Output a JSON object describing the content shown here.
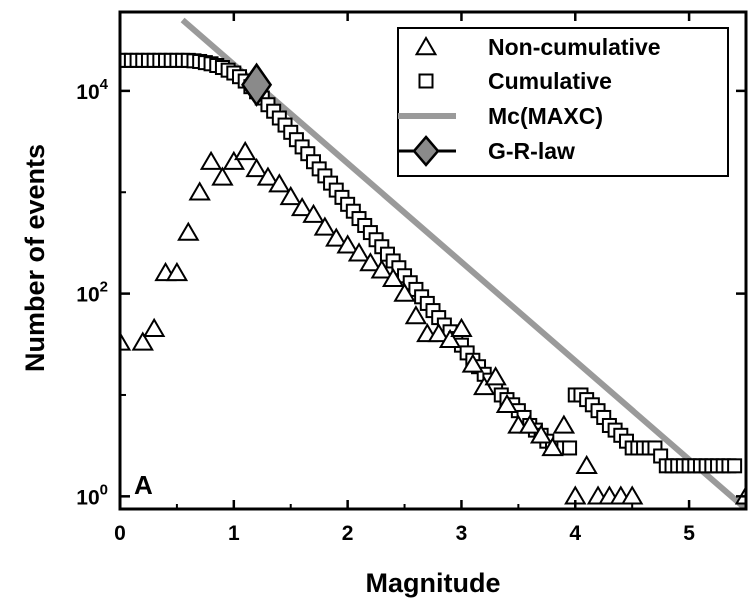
{
  "chart_data": {
    "type": "scatter",
    "y_scale": "log",
    "xlabel": "Magnitude",
    "ylabel": "Number of events",
    "xlim": [
      0,
      5.5
    ],
    "ylim": [
      0.75,
      60000
    ],
    "x_ticks": [
      0,
      1,
      2,
      3,
      4,
      5
    ],
    "x_tick_labels": [
      "0",
      "1",
      "2",
      "3",
      "4",
      "5"
    ],
    "y_ticks": [
      1,
      100,
      10000
    ],
    "y_tick_labels": [
      {
        "base": "10",
        "exp": "0"
      },
      {
        "base": "10",
        "exp": "2"
      },
      {
        "base": "10",
        "exp": "4"
      }
    ],
    "grid": false,
    "legend_position": "top-right",
    "panel_label": "A",
    "colors": {
      "fit_line": "#9a9a9a",
      "diamond": "#8a8a8a",
      "marker_stroke": "#000000"
    },
    "series": [
      {
        "name": "Non-cumulative",
        "marker": "triangle",
        "x": [
          0.0,
          0.2,
          0.3,
          0.4,
          0.5,
          0.6,
          0.7,
          0.8,
          0.9,
          1.0,
          1.1,
          1.2,
          1.3,
          1.4,
          1.5,
          1.6,
          1.7,
          1.8,
          1.9,
          2.0,
          2.1,
          2.2,
          2.3,
          2.4,
          2.5,
          2.6,
          2.7,
          2.8,
          2.9,
          3.0,
          3.1,
          3.2,
          3.3,
          3.4,
          3.5,
          3.6,
          3.7,
          3.8,
          3.9,
          4.0,
          4.1,
          4.2,
          4.3,
          4.4,
          4.5,
          5.5
        ],
        "y": [
          33,
          33,
          45,
          160,
          160,
          400,
          1000,
          2000,
          1400,
          2000,
          2500,
          1700,
          1400,
          1200,
          900,
          700,
          600,
          450,
          350,
          300,
          250,
          200,
          170,
          140,
          100,
          60,
          40,
          40,
          35,
          45,
          20,
          12,
          15,
          8,
          5,
          5,
          4,
          3,
          5,
          1,
          2,
          1,
          1,
          1,
          1,
          1
        ]
      },
      {
        "name": "Cumulative",
        "marker": "square",
        "x": [
          0.0,
          0.05,
          0.1,
          0.15,
          0.2,
          0.25,
          0.3,
          0.35,
          0.4,
          0.45,
          0.5,
          0.55,
          0.6,
          0.65,
          0.7,
          0.75,
          0.8,
          0.85,
          0.9,
          0.95,
          1.0,
          1.05,
          1.1,
          1.15,
          1.2,
          1.25,
          1.3,
          1.35,
          1.4,
          1.45,
          1.5,
          1.55,
          1.6,
          1.65,
          1.7,
          1.75,
          1.8,
          1.85,
          1.9,
          1.95,
          2.0,
          2.05,
          2.1,
          2.15,
          2.2,
          2.25,
          2.3,
          2.35,
          2.4,
          2.45,
          2.5,
          2.55,
          2.6,
          2.65,
          2.7,
          2.75,
          2.8,
          2.85,
          2.9,
          2.95,
          3.0,
          3.05,
          3.1,
          3.15,
          3.2,
          3.25,
          3.3,
          3.35,
          3.4,
          3.45,
          3.5,
          3.55,
          3.6,
          3.65,
          3.7,
          3.75,
          3.8,
          3.85,
          3.9,
          3.95,
          4.0,
          4.05,
          4.1,
          4.15,
          4.2,
          4.25,
          4.3,
          4.35,
          4.4,
          4.45,
          4.5,
          4.55,
          4.6,
          4.65,
          4.7,
          4.75,
          4.8,
          4.85,
          4.9,
          4.95,
          5.0,
          5.05,
          5.1,
          5.15,
          5.2,
          5.25,
          5.3,
          5.35,
          5.4
        ],
        "y": [
          20000,
          20000,
          20000,
          20000,
          20000,
          20000,
          20000,
          20000,
          20000,
          20000,
          20000,
          20000,
          20000,
          19800,
          19500,
          19000,
          18500,
          17800,
          17000,
          16000,
          15000,
          13800,
          12500,
          11000,
          9800,
          8500,
          7300,
          6300,
          5400,
          4600,
          3900,
          3300,
          2800,
          2400,
          2000,
          1700,
          1450,
          1230,
          1050,
          890,
          760,
          650,
          550,
          470,
          400,
          340,
          290,
          245,
          210,
          180,
          150,
          128,
          110,
          93,
          80,
          68,
          58,
          49,
          42,
          36,
          31,
          26,
          22,
          19,
          16,
          14,
          12,
          10,
          9,
          8,
          7,
          6,
          5,
          4.5,
          4,
          3.5,
          3,
          3,
          3,
          3,
          10,
          10,
          9,
          8,
          7,
          6,
          5,
          4.5,
          4,
          3.5,
          3,
          3,
          3,
          3,
          3,
          2.5,
          2,
          2,
          2,
          2,
          2,
          2,
          2,
          2,
          2,
          2,
          2,
          2,
          2
        ]
      },
      {
        "name": "Mc(MAXC)",
        "marker": "line",
        "x": [
          0.55,
          5.5
        ],
        "y": [
          50000,
          0.75
        ]
      },
      {
        "name": "G-R-law",
        "marker": "diamond",
        "x": [
          1.2
        ],
        "y": [
          11500
        ]
      }
    ]
  }
}
